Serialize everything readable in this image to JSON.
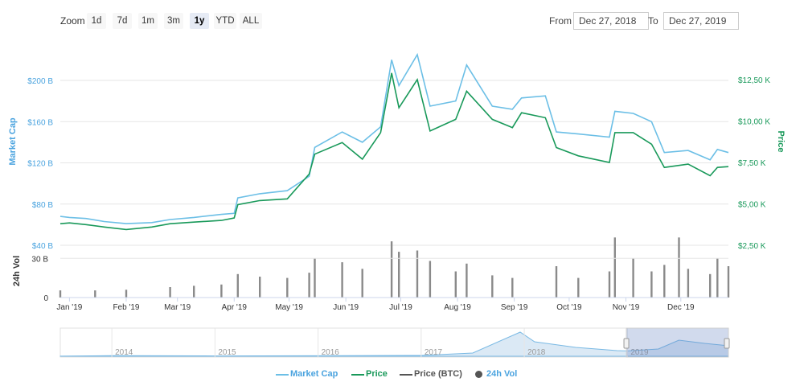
{
  "toolbar": {
    "zoom_label": "Zoom",
    "zoom_buttons": [
      "1d",
      "7d",
      "1m",
      "3m",
      "1y",
      "YTD",
      "ALL"
    ],
    "active_zoom": "1y",
    "from_label": "From",
    "from_value": "Dec 27, 2018",
    "to_label": "To",
    "to_value": "Dec 27, 2019"
  },
  "legend": {
    "market_cap": "Market Cap",
    "price": "Price",
    "price_btc": "Price (BTC)",
    "vol": "24h Vol"
  },
  "axes": {
    "left_title": "Market Cap",
    "right_title": "Price",
    "vol_title": "24h Vol"
  },
  "colors": {
    "market_cap": "#6cbfe6",
    "price": "#19995a",
    "price_btc": "#555555",
    "volume": "#8a8a8a",
    "navigator_fill": "#dbe9f5",
    "navigator_line": "#79b9e4",
    "left_axis_text": "#4aa3df",
    "right_axis_text": "#19995a"
  },
  "chart_data": [
    {
      "type": "line",
      "title": "",
      "x_labels": [
        "Jan '19",
        "Feb '19",
        "Mar '19",
        "Apr '19",
        "May '19",
        "Jun '19",
        "Jul '19",
        "Aug '19",
        "Sep '19",
        "Oct '19",
        "Nov '19",
        "Dec '19"
      ],
      "x_range": [
        "Dec 27, 2018",
        "Dec 27, 2019"
      ],
      "left_axis": {
        "label": "Market Cap",
        "ticks": [
          "$40 B",
          "$80 B",
          "$120 B",
          "$160 B",
          "$200 B"
        ],
        "tick_values": [
          40,
          80,
          120,
          160,
          200
        ],
        "unit": "B USD"
      },
      "right_axis": {
        "label": "Price",
        "ticks": [
          "$2,50 K",
          "$5,00 K",
          "$7,50 K",
          "$10,00 K",
          "$12,50 K"
        ],
        "tick_values": [
          2500,
          5000,
          7500,
          10000,
          12500
        ],
        "unit": "USD"
      },
      "series": [
        {
          "name": "Market Cap",
          "axis": "left",
          "points": [
            [
              "2018-12-27",
              68
            ],
            [
              "2019-01-01",
              67
            ],
            [
              "2019-01-10",
              66
            ],
            [
              "2019-01-20",
              63
            ],
            [
              "2019-02-01",
              61
            ],
            [
              "2019-02-15",
              62
            ],
            [
              "2019-02-25",
              65
            ],
            [
              "2019-03-10",
              67
            ],
            [
              "2019-03-25",
              70
            ],
            [
              "2019-04-01",
              71
            ],
            [
              "2019-04-03",
              86
            ],
            [
              "2019-04-15",
              90
            ],
            [
              "2019-04-30",
              93
            ],
            [
              "2019-05-12",
              107
            ],
            [
              "2019-05-15",
              135
            ],
            [
              "2019-05-30",
              150
            ],
            [
              "2019-06-10",
              140
            ],
            [
              "2019-06-20",
              155
            ],
            [
              "2019-06-26",
              220
            ],
            [
              "2019-06-30",
              195
            ],
            [
              "2019-07-10",
              225
            ],
            [
              "2019-07-17",
              175
            ],
            [
              "2019-07-31",
              180
            ],
            [
              "2019-08-06",
              215
            ],
            [
              "2019-08-20",
              175
            ],
            [
              "2019-08-31",
              172
            ],
            [
              "2019-09-05",
              183
            ],
            [
              "2019-09-18",
              185
            ],
            [
              "2019-09-24",
              150
            ],
            [
              "2019-10-06",
              148
            ],
            [
              "2019-10-23",
              145
            ],
            [
              "2019-10-26",
              170
            ],
            [
              "2019-11-05",
              168
            ],
            [
              "2019-11-15",
              160
            ],
            [
              "2019-11-22",
              130
            ],
            [
              "2019-12-05",
              132
            ],
            [
              "2019-12-17",
              123
            ],
            [
              "2019-12-21",
              133
            ],
            [
              "2019-12-27",
              130
            ]
          ]
        },
        {
          "name": "Price",
          "axis": "right",
          "points": [
            [
              "2018-12-27",
              3800
            ],
            [
              "2019-01-01",
              3850
            ],
            [
              "2019-01-10",
              3750
            ],
            [
              "2019-01-20",
              3600
            ],
            [
              "2019-02-01",
              3450
            ],
            [
              "2019-02-15",
              3600
            ],
            [
              "2019-02-25",
              3800
            ],
            [
              "2019-03-10",
              3900
            ],
            [
              "2019-03-25",
              4000
            ],
            [
              "2019-04-01",
              4150
            ],
            [
              "2019-04-03",
              4950
            ],
            [
              "2019-04-15",
              5200
            ],
            [
              "2019-04-30",
              5300
            ],
            [
              "2019-05-12",
              6800
            ],
            [
              "2019-05-15",
              8000
            ],
            [
              "2019-05-30",
              8700
            ],
            [
              "2019-06-10",
              7700
            ],
            [
              "2019-06-20",
              9300
            ],
            [
              "2019-06-26",
              12900
            ],
            [
              "2019-06-30",
              10800
            ],
            [
              "2019-07-10",
              12500
            ],
            [
              "2019-07-17",
              9400
            ],
            [
              "2019-07-31",
              10100
            ],
            [
              "2019-08-06",
              11800
            ],
            [
              "2019-08-20",
              10100
            ],
            [
              "2019-08-31",
              9600
            ],
            [
              "2019-09-05",
              10500
            ],
            [
              "2019-09-18",
              10200
            ],
            [
              "2019-09-24",
              8400
            ],
            [
              "2019-10-06",
              7900
            ],
            [
              "2019-10-23",
              7500
            ],
            [
              "2019-10-26",
              9300
            ],
            [
              "2019-11-05",
              9300
            ],
            [
              "2019-11-15",
              8600
            ],
            [
              "2019-11-22",
              7200
            ],
            [
              "2019-12-05",
              7400
            ],
            [
              "2019-12-17",
              6700
            ],
            [
              "2019-12-21",
              7200
            ],
            [
              "2019-12-27",
              7250
            ]
          ]
        }
      ]
    },
    {
      "type": "bar",
      "title": "",
      "y_axis": {
        "label": "24h Vol",
        "ticks": [
          "0",
          "30 B"
        ],
        "tick_values": [
          0,
          30
        ],
        "max_label": "$40 B",
        "unit": "B USD"
      },
      "series": [
        {
          "name": "24h Vol",
          "points": [
            [
              "2018-12-27",
              5.5
            ],
            [
              "2019-01-15",
              5.5
            ],
            [
              "2019-02-01",
              6
            ],
            [
              "2019-02-25",
              8
            ],
            [
              "2019-03-10",
              9
            ],
            [
              "2019-03-25",
              10
            ],
            [
              "2019-04-03",
              18
            ],
            [
              "2019-04-15",
              16
            ],
            [
              "2019-04-30",
              15
            ],
            [
              "2019-05-12",
              19
            ],
            [
              "2019-05-15",
              30
            ],
            [
              "2019-05-30",
              27
            ],
            [
              "2019-06-10",
              22
            ],
            [
              "2019-06-26",
              43
            ],
            [
              "2019-06-30",
              35
            ],
            [
              "2019-07-10",
              36
            ],
            [
              "2019-07-17",
              28
            ],
            [
              "2019-07-31",
              20
            ],
            [
              "2019-08-06",
              26
            ],
            [
              "2019-08-20",
              17
            ],
            [
              "2019-08-31",
              15
            ],
            [
              "2019-09-24",
              24
            ],
            [
              "2019-10-06",
              15
            ],
            [
              "2019-10-23",
              20
            ],
            [
              "2019-10-26",
              46
            ],
            [
              "2019-11-05",
              30
            ],
            [
              "2019-11-15",
              20
            ],
            [
              "2019-11-22",
              25
            ],
            [
              "2019-11-30",
              46
            ],
            [
              "2019-12-05",
              22
            ],
            [
              "2019-12-17",
              18
            ],
            [
              "2019-12-21",
              30
            ],
            [
              "2019-12-27",
              24
            ]
          ]
        }
      ]
    },
    {
      "type": "area",
      "title": "",
      "x_labels": [
        "2014",
        "2015",
        "2016",
        "2017",
        "2018",
        "2019"
      ],
      "selected_range": [
        "Dec 27, 2018",
        "Dec 27, 2019"
      ],
      "series": [
        {
          "name": "Market Cap",
          "points": [
            [
              2013.5,
              1
            ],
            [
              2014.0,
              8
            ],
            [
              2015.0,
              4
            ],
            [
              2016.0,
              6
            ],
            [
              2017.0,
              10
            ],
            [
              2017.5,
              40
            ],
            [
              2017.96,
              300
            ],
            [
              2018.1,
              180
            ],
            [
              2018.5,
              110
            ],
            [
              2018.9,
              70
            ],
            [
              2019.0,
              66
            ],
            [
              2019.3,
              90
            ],
            [
              2019.5,
              200
            ],
            [
              2019.75,
              160
            ],
            [
              2019.98,
              130
            ]
          ]
        }
      ]
    }
  ]
}
